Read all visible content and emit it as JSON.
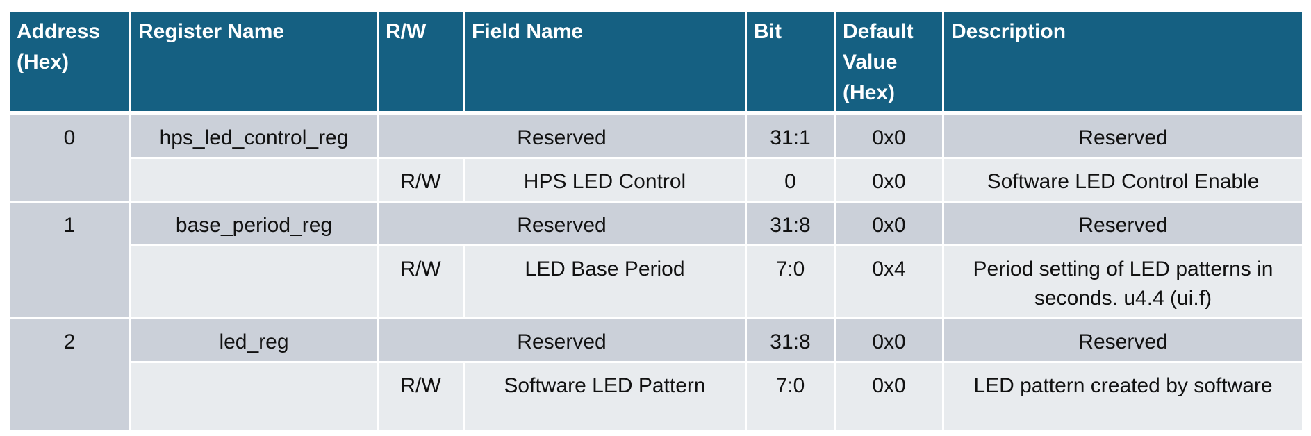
{
  "headers": {
    "address": "Address (Hex)",
    "register_name": "Register Name",
    "rw": "R/W",
    "field_name": "Field Name",
    "bit": "Bit",
    "default_value": "Default Value (Hex)",
    "description": "Description"
  },
  "registers": [
    {
      "address": "0",
      "register_name": "hps_led_control_reg",
      "reserved": {
        "field": "Reserved",
        "bit": "31:1",
        "default": "0x0",
        "description": "Reserved"
      },
      "field": {
        "rw": "R/W",
        "field_name": "HPS LED Control",
        "bit": "0",
        "default": "0x0",
        "description": "Software LED Control Enable"
      }
    },
    {
      "address": "1",
      "register_name": "base_period_reg",
      "reserved": {
        "field": "Reserved",
        "bit": "31:8",
        "default": "0x0",
        "description": "Reserved"
      },
      "field": {
        "rw": "R/W",
        "field_name": "LED Base Period",
        "bit": "7:0",
        "default": "0x4",
        "description": "Period setting of LED patterns in seconds. u4.4 (ui.f)"
      }
    },
    {
      "address": "2",
      "register_name": "led_reg",
      "reserved": {
        "field": "Reserved",
        "bit": "31:8",
        "default": "0x0",
        "description": "Reserved"
      },
      "field": {
        "rw": "R/W",
        "field_name": "Software LED Pattern",
        "bit": "7:0",
        "default": "0x0",
        "description": "LED pattern created by software"
      }
    }
  ]
}
